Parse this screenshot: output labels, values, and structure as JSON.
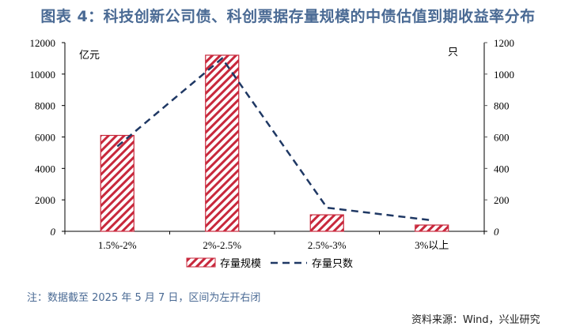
{
  "title": "图表 4：科技创新公司债、科创票据存量规模的中债估值到期收益率分布",
  "left_unit": "亿元",
  "right_unit": "只",
  "note": "注：数据截至 2025 年 5 月 7 日，区间为左开右闭",
  "source": "资料来源：Wind，兴业研究",
  "colors": {
    "bar": "#c8283c",
    "line": "#1f3864",
    "title": "#4a6a94"
  },
  "chart_data": {
    "type": "bar",
    "title": "科技创新公司债、科创票据存量规模的中债估值到期收益率分布",
    "categories": [
      "1.5%-2%",
      "2%-2.5%",
      "2.5%-3%",
      "3%以上"
    ],
    "series": [
      {
        "name": "存量规模",
        "type": "bar",
        "axis": "left",
        "unit": "亿元",
        "values": [
          6100,
          11200,
          1050,
          400
        ]
      },
      {
        "name": "存量只数",
        "type": "line",
        "style": "dashed",
        "axis": "right",
        "unit": "只",
        "values": [
          540,
          1100,
          150,
          70
        ]
      }
    ],
    "ylabel": "亿元",
    "ylabel_right": "只",
    "ylim": [
      0,
      12000
    ],
    "ylim_right": [
      0,
      1200
    ],
    "yticks": [
      0,
      2000,
      4000,
      6000,
      8000,
      10000,
      12000
    ],
    "yticks_right": [
      0,
      200,
      400,
      600,
      800,
      1000,
      1200
    ],
    "grid": false,
    "legend_position": "bottom"
  },
  "legend": [
    {
      "label": "存量规模"
    },
    {
      "label": "存量只数"
    }
  ]
}
